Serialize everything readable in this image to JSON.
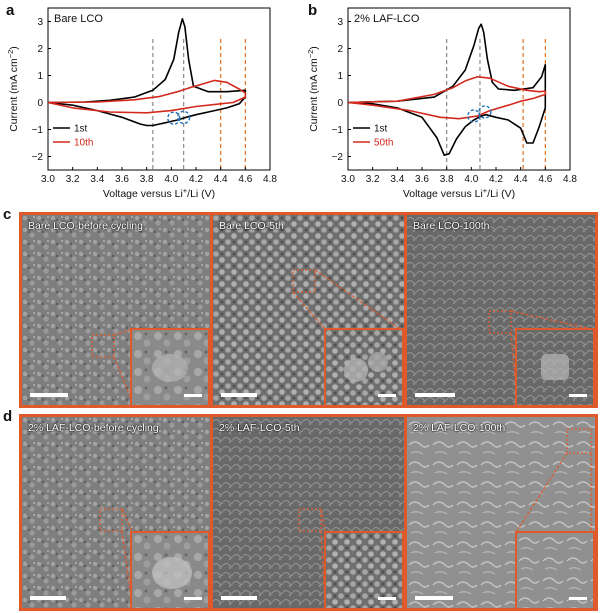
{
  "panels": {
    "a": "a",
    "b": "b",
    "c": "c",
    "d": "d"
  },
  "chart_data": [
    {
      "type": "line",
      "panel": "a",
      "sample_label": "Bare LCO",
      "xlabel": "Voltage versus Li+/Li (V)",
      "xlabel_main": "Voltage versus Li",
      "xlabel_sup": "+",
      "xlabel_tail": "/Li (V)",
      "ylabel_main": "Current (mA cm",
      "ylabel_sup": "−2",
      "ylabel_tail": ")",
      "xlim": [
        3.0,
        4.8
      ],
      "ylim": [
        -2.5,
        3.5
      ],
      "xticks": [
        "3.0",
        "3.2",
        "3.4",
        "3.6",
        "3.8",
        "4.0",
        "4.2",
        "4.4",
        "4.6",
        "4.8"
      ],
      "yticks": [
        "-2",
        "-1",
        "0",
        "1",
        "2",
        "3"
      ],
      "legend": [
        "1st",
        "10th"
      ],
      "series": [
        {
          "name": "1st",
          "color": "#000000",
          "x": [
            3.0,
            3.3,
            3.5,
            3.7,
            3.85,
            3.95,
            4.02,
            4.06,
            4.09,
            4.11,
            4.14,
            4.18,
            4.3,
            4.45,
            4.6,
            4.6,
            4.55,
            4.45,
            4.3,
            4.2,
            4.12,
            4.05,
            4.0,
            3.95,
            3.9,
            3.85,
            3.8,
            3.75,
            3.6,
            3.4,
            3.2,
            3.0
          ],
          "y": [
            0.0,
            0.02,
            0.08,
            0.2,
            0.45,
            0.85,
            1.6,
            2.6,
            3.1,
            2.8,
            1.6,
            0.6,
            0.4,
            0.4,
            0.45,
            0.2,
            -0.05,
            -0.2,
            -0.35,
            -0.45,
            -0.55,
            -0.65,
            -0.7,
            -0.75,
            -0.8,
            -0.85,
            -0.85,
            -0.8,
            -0.55,
            -0.3,
            -0.1,
            0.0
          ]
        },
        {
          "name": "10th",
          "color": "#d42a1e",
          "x": [
            3.0,
            3.4,
            3.7,
            3.9,
            4.05,
            4.15,
            4.25,
            4.35,
            4.45,
            4.55,
            4.6,
            4.6,
            4.5,
            4.4,
            4.2,
            4.0,
            3.8,
            3.5,
            3.2,
            3.0
          ],
          "y": [
            0.0,
            0.02,
            0.1,
            0.22,
            0.4,
            0.55,
            0.68,
            0.82,
            0.75,
            0.5,
            0.35,
            0.2,
            0.0,
            -0.05,
            -0.15,
            -0.3,
            -0.38,
            -0.35,
            -0.2,
            0.0
          ]
        }
      ],
      "dashed_lines": [
        {
          "x": 3.85,
          "color": "#888888"
        },
        {
          "x": 4.1,
          "color": "#888888"
        },
        {
          "x": 4.4,
          "color": "#e07020"
        },
        {
          "x": 4.6,
          "color": "#e07020"
        }
      ],
      "circles": [
        {
          "x": 4.02,
          "y": -0.58
        },
        {
          "x": 4.1,
          "y": -0.55
        }
      ]
    },
    {
      "type": "line",
      "panel": "b",
      "sample_label": "2% LAF-LCO",
      "xlabel": "Voltage versus Li+/Li (V)",
      "xlabel_main": "Voltage versus Li",
      "xlabel_sup": "+",
      "xlabel_tail": "/Li (V)",
      "ylabel_main": "Current (mA cm",
      "ylabel_sup": "−2",
      "ylabel_tail": ")",
      "xlim": [
        3.0,
        4.8
      ],
      "ylim": [
        -2.5,
        3.5
      ],
      "xticks": [
        "3.0",
        "3.2",
        "3.4",
        "3.6",
        "3.8",
        "4.0",
        "4.2",
        "4.4",
        "4.6",
        "4.8"
      ],
      "yticks": [
        "-2",
        "-1",
        "0",
        "1",
        "2",
        "3"
      ],
      "legend": [
        "1st",
        "50th"
      ],
      "series": [
        {
          "name": "1st",
          "color": "#000000",
          "x": [
            3.0,
            3.4,
            3.7,
            3.85,
            3.95,
            4.02,
            4.06,
            4.08,
            4.1,
            4.13,
            4.17,
            4.22,
            4.35,
            4.5,
            4.57,
            4.6,
            4.6,
            4.55,
            4.5,
            4.45,
            4.4,
            4.3,
            4.2,
            4.12,
            4.08,
            4.02,
            3.95,
            3.88,
            3.82,
            3.78,
            3.72,
            3.6,
            3.4,
            3.2,
            3.0
          ],
          "y": [
            0.0,
            0.05,
            0.2,
            0.6,
            1.2,
            2.1,
            2.75,
            2.9,
            2.6,
            1.6,
            0.75,
            0.5,
            0.45,
            0.55,
            0.95,
            1.4,
            -0.2,
            -0.9,
            -1.5,
            -1.5,
            -0.95,
            -0.65,
            -0.55,
            -0.45,
            -0.5,
            -0.65,
            -0.9,
            -1.35,
            -1.9,
            -1.95,
            -1.3,
            -0.55,
            -0.2,
            -0.05,
            0.0
          ]
        },
        {
          "name": "50th",
          "color": "#d42a1e",
          "x": [
            3.0,
            3.4,
            3.7,
            3.85,
            3.95,
            4.05,
            4.15,
            4.3,
            4.45,
            4.55,
            4.6,
            4.6,
            4.5,
            4.4,
            4.3,
            4.15,
            4.05,
            3.9,
            3.75,
            3.5,
            3.2,
            3.0
          ],
          "y": [
            0.0,
            0.05,
            0.3,
            0.55,
            0.8,
            0.95,
            0.9,
            0.6,
            0.45,
            0.4,
            0.42,
            0.3,
            0.15,
            0.05,
            -0.1,
            -0.3,
            -0.5,
            -0.6,
            -0.55,
            -0.3,
            -0.1,
            0.0
          ]
        }
      ],
      "dashed_lines": [
        {
          "x": 3.8,
          "color": "#888888"
        },
        {
          "x": 4.07,
          "color": "#888888"
        },
        {
          "x": 4.42,
          "color": "#e07020"
        },
        {
          "x": 4.6,
          "color": "#e07020"
        }
      ],
      "circles": [
        {
          "x": 4.02,
          "y": -0.5
        },
        {
          "x": 4.11,
          "y": -0.35
        }
      ]
    }
  ],
  "sem": {
    "row_c": [
      {
        "label": "Bare LCO-before cycling"
      },
      {
        "label": "Bare LCO-5th"
      },
      {
        "label": "Bare LCO-100th"
      }
    ],
    "row_d": [
      {
        "label": "2% LAF-LCO-before cycling"
      },
      {
        "label": "2% LAF-LCO-5th"
      },
      {
        "label": "2% LAF-LCO-100th"
      }
    ]
  },
  "colors": {
    "frame": "#e0592a",
    "black_curve": "#000000",
    "red_curve": "#d42a1e",
    "blue_circle": "#1f6fb5"
  }
}
